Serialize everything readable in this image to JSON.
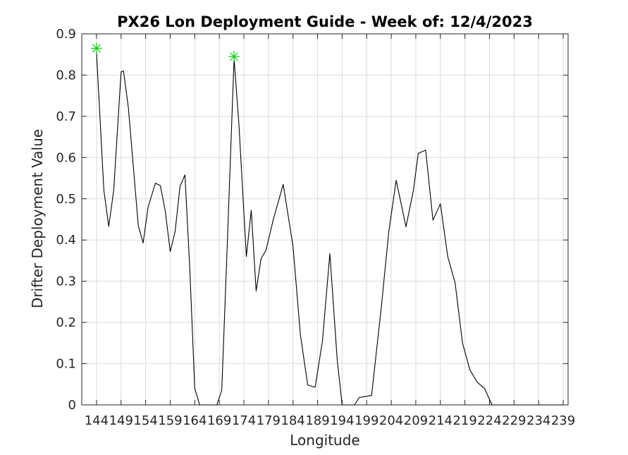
{
  "chart_data": {
    "type": "line",
    "title": "PX26 Lon Deployment Guide - Week of: 12/4/2023",
    "xlabel": "Longitude",
    "ylabel": "Drifter Deployment Value",
    "xlim": [
      141,
      240
    ],
    "ylim": [
      0,
      0.9
    ],
    "grid": true,
    "x_ticks": [
      144,
      149,
      154,
      159,
      164,
      169,
      174,
      179,
      184,
      189,
      194,
      199,
      204,
      209,
      214,
      219,
      224,
      229,
      234,
      239
    ],
    "y_ticks": [
      0,
      0.1,
      0.2,
      0.3,
      0.4,
      0.5,
      0.6,
      0.7,
      0.8,
      0.9
    ],
    "y_tick_labels": [
      "0",
      "0.1",
      "0.2",
      "0.3",
      "0.4",
      "0.5",
      "0.6",
      "0.7",
      "0.8",
      "0.9"
    ],
    "series": [
      {
        "color": "#000000",
        "x": [
          144,
          145.5,
          146.5,
          147.5,
          149,
          149.5,
          150.5,
          152.5,
          153.5,
          154.5,
          156,
          157,
          158,
          159,
          160,
          161,
          162,
          163,
          164,
          165,
          166.5,
          168.5,
          169.5,
          170.5,
          172,
          173,
          174.5,
          175.5,
          176.5,
          177.5,
          178.5,
          180,
          182,
          184,
          185.5,
          187,
          188.5,
          190,
          191.5,
          193,
          194,
          195,
          196.5,
          197.5,
          198.5,
          200,
          202,
          203.5,
          205,
          207,
          208.5,
          209.5,
          211,
          212.5,
          214,
          215.5,
          217,
          218.5,
          220,
          221.5,
          223,
          224.5,
          226,
          227.5,
          228.5,
          229,
          230,
          232,
          236,
          239
        ],
        "y": [
          0.855,
          0.52,
          0.433,
          0.52,
          0.808,
          0.81,
          0.72,
          0.435,
          0.393,
          0.48,
          0.538,
          0.532,
          0.47,
          0.372,
          0.42,
          0.53,
          0.558,
          0.33,
          0.04,
          0.0,
          0.0,
          0.0,
          0.035,
          0.35,
          0.84,
          0.68,
          0.36,
          0.472,
          0.276,
          0.355,
          0.375,
          0.45,
          0.535,
          0.385,
          0.17,
          0.048,
          0.043,
          0.155,
          0.367,
          0.11,
          0.0,
          0.0,
          0.0,
          0.018,
          0.02,
          0.023,
          0.24,
          0.42,
          0.545,
          0.432,
          0.52,
          0.61,
          0.618,
          0.448,
          0.488,
          0.36,
          0.296,
          0.15,
          0.085,
          0.055,
          0.04,
          0.0,
          0.0,
          0.0,
          0.0,
          0.0,
          0.0,
          0.0,
          0.0,
          0.0
        ]
      }
    ],
    "markers": {
      "style": "star",
      "color": "#00cc00",
      "points": [
        {
          "x": 144,
          "y": 0.865
        },
        {
          "x": 172,
          "y": 0.845
        }
      ]
    }
  }
}
